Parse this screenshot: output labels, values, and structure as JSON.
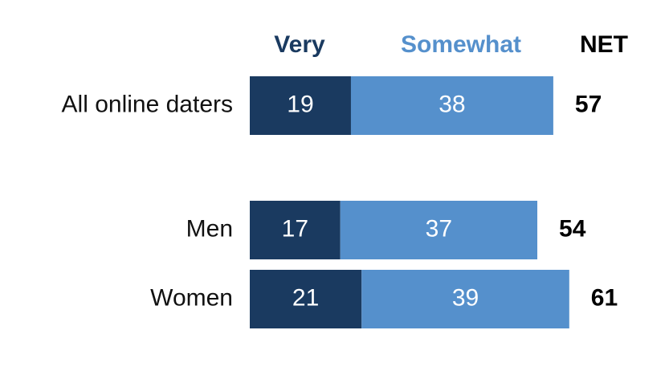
{
  "chart_data": {
    "type": "stacked_bar_horizontal",
    "categories": [
      "All online daters",
      "Men",
      "Women"
    ],
    "series": [
      {
        "name": "Very",
        "color": "#1a3a60",
        "values": [
          19,
          17,
          21
        ]
      },
      {
        "name": "Somewhat",
        "color": "#5590cc",
        "values": [
          38,
          37,
          39
        ]
      }
    ],
    "net": {
      "name": "NET",
      "values": [
        57,
        54,
        61
      ]
    }
  }
}
